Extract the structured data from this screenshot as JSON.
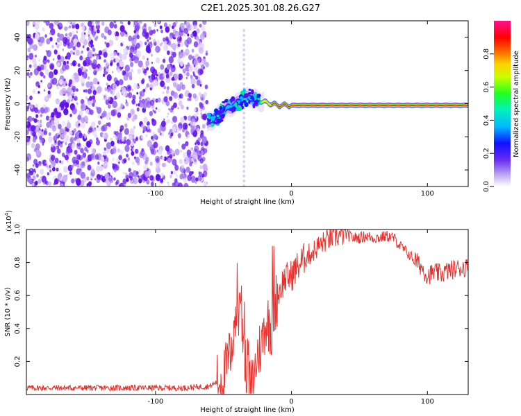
{
  "title": "C2E1.2025.301.08.26.G27",
  "colors": {
    "background": "#ffffff",
    "axis": "#000000",
    "snr_line": "#e8302c",
    "noise": "#6a10ee",
    "noise_light": "#c9a8f5"
  },
  "chart_data": [
    {
      "type": "heatmap",
      "name": "spectrogram",
      "xlabel": "Height of straight line (km)",
      "ylabel": "Frequency (Hz)",
      "xlim": [
        -195,
        130
      ],
      "ylim": [
        -50,
        50
      ],
      "x_ticks": [
        -100,
        0,
        100
      ],
      "x_tick_labels": [
        "-100",
        "0",
        "100"
      ],
      "y_ticks": [
        -40,
        -20,
        0,
        20,
        40
      ],
      "y_tick_labels": [
        "-40",
        "-20",
        "0",
        "20",
        "40"
      ],
      "noise_region_km": [
        -195,
        -62
      ],
      "signal_track": {
        "x": [
          -62,
          -55,
          -50,
          -45,
          -40,
          -35,
          -30,
          -25,
          -20,
          -10,
          0,
          20,
          60,
          80,
          100,
          130
        ],
        "freq_hz": [
          -12,
          -8,
          -4,
          -2,
          0,
          3,
          4,
          2,
          1,
          -1,
          -1,
          -1,
          -1,
          -1,
          -1,
          -1
        ]
      },
      "colorbar": {
        "label": "Normalized spectral amplitude",
        "ticks": [
          0,
          0.2,
          0.4,
          0.6,
          0.8
        ],
        "tick_labels": [
          "0.0",
          "0.2",
          "0.4",
          "0.6",
          "0.8"
        ],
        "range": [
          0,
          1
        ],
        "colormap": [
          "#ffffff",
          "#a58af0",
          "#4b00ff",
          "#0000ff",
          "#00d8ff",
          "#00ff66",
          "#ffff00",
          "#ff6600",
          "#ff0000",
          "#ff00aa"
        ]
      }
    },
    {
      "type": "line",
      "name": "snr",
      "xlabel": "Height of straight line (km)",
      "ylabel": "SNR (10 * v/v)",
      "scale_label": "(x10",
      "scale_exponent": "4",
      "xlim": [
        -195,
        130
      ],
      "ylim": [
        0,
        1.0
      ],
      "x_ticks": [
        -100,
        0,
        100
      ],
      "x_tick_labels": [
        "-100",
        "0",
        "100"
      ],
      "y_ticks": [
        0.2,
        0.4,
        0.6,
        0.8,
        1.0
      ],
      "y_tick_labels": [
        "0.2",
        "0.4",
        "0.6",
        "0.8",
        "1.0"
      ],
      "series": [
        {
          "name": "SNR",
          "x": [
            -195,
            -120,
            -80,
            -60,
            -50,
            -45,
            -40,
            -38,
            -35,
            -33,
            -30,
            -28,
            -25,
            -22,
            -20,
            -18,
            -15,
            -12,
            -10,
            -8,
            -5,
            0,
            5,
            10,
            15,
            20,
            25,
            30,
            35,
            40,
            45,
            50,
            55,
            60,
            65,
            70,
            75,
            80,
            85,
            90,
            95,
            100,
            105,
            110,
            115,
            120,
            125,
            130
          ],
          "y": [
            0.04,
            0.04,
            0.04,
            0.05,
            0.1,
            0.25,
            0.55,
            0.45,
            0.35,
            0.1,
            0.05,
            0.08,
            0.25,
            0.3,
            0.4,
            0.45,
            0.4,
            0.55,
            0.6,
            0.65,
            0.7,
            0.72,
            0.78,
            0.83,
            0.86,
            0.9,
            0.93,
            0.95,
            0.96,
            0.97,
            0.95,
            0.95,
            0.96,
            0.95,
            0.95,
            0.96,
            0.95,
            0.9,
            0.86,
            0.82,
            0.78,
            0.72,
            0.74,
            0.73,
            0.75,
            0.76,
            0.77,
            0.77
          ]
        }
      ]
    }
  ]
}
